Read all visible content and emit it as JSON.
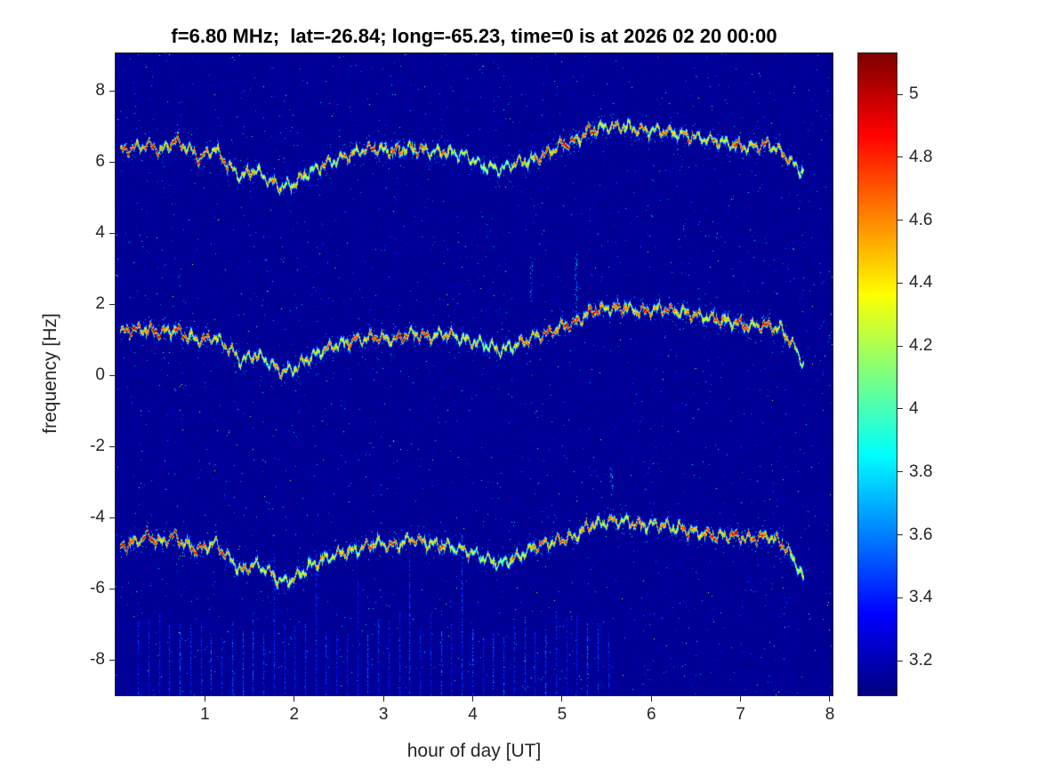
{
  "chart_data": {
    "type": "heatmap",
    "title": "f=6.80 MHz;  lat=-26.84; long=-65.23, time=0 is at 2026 02 20 00:00",
    "xlabel": "hour of day [UT]",
    "ylabel": "frequency [Hz]",
    "xlim": [
      0,
      8.03
    ],
    "ylim": [
      -9.0,
      9.05
    ],
    "x_ticks": [
      1,
      2,
      3,
      4,
      5,
      6,
      7,
      8
    ],
    "y_ticks": [
      8,
      6,
      4,
      2,
      0,
      -2,
      -4,
      -6,
      -8
    ],
    "grid": false,
    "colormap": "jet",
    "colorbar": {
      "min": 3.09,
      "max": 5.13,
      "ticks": [
        5,
        4.8,
        4.6,
        4.4,
        4.2,
        4,
        3.8,
        3.6,
        3.4,
        3.2
      ],
      "position": "right"
    },
    "background_level": 3.1,
    "noise_level": 0.08,
    "traces": [
      {
        "name": "upper-doppler-trace",
        "points": [
          [
            0.05,
            6.3,
            0.9
          ],
          [
            0.2,
            6.4,
            0.9
          ],
          [
            0.35,
            6.5,
            0.95
          ],
          [
            0.5,
            6.3,
            0.9
          ],
          [
            0.65,
            6.6,
            0.9
          ],
          [
            0.8,
            6.4,
            0.8
          ],
          [
            0.95,
            6.1,
            0.85
          ],
          [
            1.1,
            6.4,
            0.8
          ],
          [
            1.25,
            5.9,
            0.7
          ],
          [
            1.4,
            5.6,
            0.7
          ],
          [
            1.55,
            5.8,
            0.6
          ],
          [
            1.7,
            5.5,
            0.6
          ],
          [
            1.85,
            5.3,
            0.65
          ],
          [
            2.0,
            5.4,
            0.6
          ],
          [
            2.15,
            5.7,
            0.6
          ],
          [
            2.3,
            5.9,
            0.6
          ],
          [
            2.5,
            6.1,
            0.7
          ],
          [
            2.7,
            6.3,
            0.75
          ],
          [
            2.9,
            6.4,
            0.8
          ],
          [
            3.1,
            6.3,
            0.8
          ],
          [
            3.3,
            6.4,
            0.8
          ],
          [
            3.5,
            6.3,
            0.75
          ],
          [
            3.7,
            6.3,
            0.6
          ],
          [
            3.9,
            6.2,
            0.5
          ],
          [
            4.1,
            5.9,
            0.45
          ],
          [
            4.3,
            5.8,
            0.4
          ],
          [
            4.5,
            6.0,
            0.6
          ],
          [
            4.7,
            6.1,
            0.8
          ],
          [
            4.85,
            6.3,
            0.9
          ],
          [
            5.0,
            6.5,
            0.95
          ],
          [
            5.15,
            6.6,
            0.95
          ],
          [
            5.3,
            6.9,
            0.85
          ],
          [
            5.5,
            7.0,
            0.7
          ],
          [
            5.7,
            7.0,
            0.7
          ],
          [
            5.9,
            6.9,
            0.7
          ],
          [
            6.1,
            6.9,
            0.7
          ],
          [
            6.3,
            6.8,
            0.7
          ],
          [
            6.5,
            6.7,
            0.7
          ],
          [
            6.7,
            6.6,
            0.65
          ],
          [
            6.9,
            6.5,
            0.7
          ],
          [
            7.1,
            6.4,
            0.8
          ],
          [
            7.3,
            6.5,
            0.85
          ],
          [
            7.45,
            6.3,
            0.8
          ],
          [
            7.6,
            5.9,
            0.6
          ],
          [
            7.7,
            5.7,
            0.5
          ]
        ]
      },
      {
        "name": "middle-doppler-trace",
        "points": [
          [
            0.05,
            1.2,
            1.0
          ],
          [
            0.2,
            1.3,
            1.0
          ],
          [
            0.35,
            1.3,
            1.0
          ],
          [
            0.5,
            1.2,
            0.95
          ],
          [
            0.65,
            1.3,
            0.95
          ],
          [
            0.8,
            1.1,
            0.9
          ],
          [
            0.95,
            1.0,
            0.85
          ],
          [
            1.1,
            1.1,
            0.8
          ],
          [
            1.25,
            0.8,
            0.7
          ],
          [
            1.4,
            0.4,
            0.7
          ],
          [
            1.55,
            0.6,
            0.6
          ],
          [
            1.7,
            0.4,
            0.6
          ],
          [
            1.85,
            0.1,
            0.65
          ],
          [
            2.0,
            0.2,
            0.6
          ],
          [
            2.15,
            0.5,
            0.6
          ],
          [
            2.3,
            0.7,
            0.65
          ],
          [
            2.5,
            0.9,
            0.7
          ],
          [
            2.7,
            1.0,
            0.8
          ],
          [
            2.9,
            1.1,
            0.85
          ],
          [
            3.1,
            1.0,
            0.85
          ],
          [
            3.3,
            1.2,
            0.9
          ],
          [
            3.5,
            1.1,
            0.85
          ],
          [
            3.7,
            1.2,
            0.7
          ],
          [
            3.9,
            1.0,
            0.6
          ],
          [
            4.1,
            0.9,
            0.5
          ],
          [
            4.3,
            0.7,
            0.45
          ],
          [
            4.5,
            0.9,
            0.7
          ],
          [
            4.7,
            1.1,
            0.85
          ],
          [
            4.85,
            1.2,
            0.95
          ],
          [
            5.0,
            1.4,
            1.0
          ],
          [
            5.15,
            1.5,
            1.0
          ],
          [
            5.3,
            1.8,
            0.9
          ],
          [
            5.5,
            1.9,
            0.85
          ],
          [
            5.7,
            1.9,
            0.85
          ],
          [
            5.9,
            1.8,
            0.85
          ],
          [
            6.1,
            1.9,
            0.85
          ],
          [
            6.3,
            1.8,
            0.8
          ],
          [
            6.5,
            1.7,
            0.8
          ],
          [
            6.7,
            1.6,
            0.75
          ],
          [
            6.9,
            1.5,
            0.8
          ],
          [
            7.1,
            1.4,
            0.85
          ],
          [
            7.3,
            1.4,
            0.85
          ],
          [
            7.45,
            1.3,
            0.8
          ],
          [
            7.6,
            0.8,
            0.6
          ],
          [
            7.7,
            0.3,
            0.5
          ]
        ]
      },
      {
        "name": "lower-doppler-trace",
        "points": [
          [
            0.05,
            -4.8,
            1.0
          ],
          [
            0.2,
            -4.7,
            1.0
          ],
          [
            0.35,
            -4.5,
            1.0
          ],
          [
            0.5,
            -4.7,
            1.0
          ],
          [
            0.65,
            -4.5,
            0.95
          ],
          [
            0.8,
            -4.8,
            0.95
          ],
          [
            0.95,
            -4.9,
            0.9
          ],
          [
            1.1,
            -4.7,
            0.85
          ],
          [
            1.25,
            -5.1,
            0.75
          ],
          [
            1.4,
            -5.5,
            0.7
          ],
          [
            1.55,
            -5.3,
            0.65
          ],
          [
            1.7,
            -5.5,
            0.6
          ],
          [
            1.85,
            -5.8,
            0.6
          ],
          [
            2.0,
            -5.7,
            0.6
          ],
          [
            2.15,
            -5.4,
            0.6
          ],
          [
            2.3,
            -5.2,
            0.6
          ],
          [
            2.5,
            -5.0,
            0.65
          ],
          [
            2.7,
            -4.9,
            0.7
          ],
          [
            2.9,
            -4.7,
            0.75
          ],
          [
            3.1,
            -4.8,
            0.75
          ],
          [
            3.3,
            -4.6,
            0.8
          ],
          [
            3.5,
            -4.7,
            0.75
          ],
          [
            3.7,
            -4.8,
            0.65
          ],
          [
            3.9,
            -4.9,
            0.55
          ],
          [
            4.1,
            -5.1,
            0.5
          ],
          [
            4.3,
            -5.3,
            0.45
          ],
          [
            4.5,
            -5.1,
            0.6
          ],
          [
            4.7,
            -4.8,
            0.75
          ],
          [
            4.85,
            -4.7,
            0.8
          ],
          [
            5.0,
            -4.6,
            0.8
          ],
          [
            5.15,
            -4.5,
            0.8
          ],
          [
            5.3,
            -4.2,
            0.75
          ],
          [
            5.5,
            -4.1,
            0.7
          ],
          [
            5.7,
            -4.1,
            0.7
          ],
          [
            5.9,
            -4.2,
            0.7
          ],
          [
            6.1,
            -4.2,
            0.7
          ],
          [
            6.3,
            -4.3,
            0.75
          ],
          [
            6.5,
            -4.4,
            0.8
          ],
          [
            6.7,
            -4.5,
            0.85
          ],
          [
            6.9,
            -4.5,
            0.9
          ],
          [
            7.1,
            -4.6,
            0.95
          ],
          [
            7.3,
            -4.5,
            0.9
          ],
          [
            7.45,
            -4.7,
            0.85
          ],
          [
            7.6,
            -5.2,
            0.6
          ],
          [
            7.7,
            -5.7,
            0.5
          ]
        ]
      }
    ],
    "plumes": [
      {
        "hour": 5.15,
        "f_from": 1.6,
        "f_to": 3.4
      },
      {
        "hour": 4.65,
        "f_from": 2.0,
        "f_to": 3.1
      },
      {
        "hour": 5.55,
        "f_from": -3.4,
        "f_to": -2.6
      }
    ],
    "interference_spikes": {
      "hour_start": 0.25,
      "hour_end": 5.6,
      "spacing": 0.117,
      "freq_bottom": -9.0,
      "freq_top": -7.4
    }
  }
}
